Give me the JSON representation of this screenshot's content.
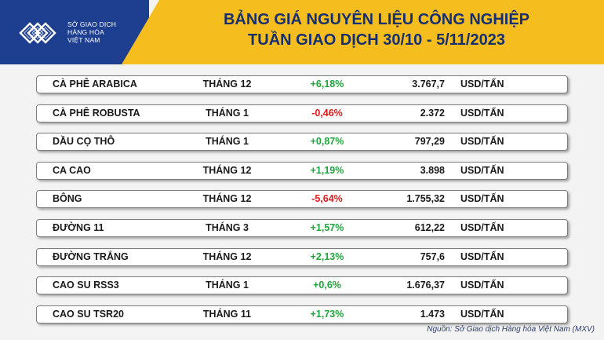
{
  "logo": {
    "line1": "SỞ GIAO DỊCH",
    "line2": "HÀNG HÓA",
    "line3": "VIỆT NAM"
  },
  "title": {
    "line1": "BẢNG GIÁ NGUYÊN LIỆU CÔNG NGHIỆP",
    "line2": "TUẦN GIAO DỊCH 30/10 - 5/11/2023"
  },
  "rows": [
    {
      "name": "CÀ PHÊ ARABICA",
      "month": "THÁNG 12",
      "change": "+6,18%",
      "direction": "up",
      "price": "3.767,7",
      "unit": "USD/TẤN"
    },
    {
      "name": "CÀ PHÊ ROBUSTA",
      "month": "THÁNG 1",
      "change": "-0,46%",
      "direction": "down",
      "price": "2.372",
      "unit": "USD/TẤN"
    },
    {
      "name": "DẦU CỌ THÔ",
      "month": "THÁNG 1",
      "change": "+0,87%",
      "direction": "up",
      "price": "797,29",
      "unit": "USD/TẤN"
    },
    {
      "name": "CA CAO",
      "month": "THÁNG 12",
      "change": "+1,19%",
      "direction": "up",
      "price": "3.898",
      "unit": "USD/TẤN"
    },
    {
      "name": "BÔNG",
      "month": "THÁNG 12",
      "change": "-5,64%",
      "direction": "down",
      "price": "1.755,32",
      "unit": "USD/TẤN"
    },
    {
      "name": "ĐƯỜNG 11",
      "month": "THÁNG 3",
      "change": "+1,57%",
      "direction": "up",
      "price": "612,22",
      "unit": "USD/TẤN"
    },
    {
      "name": "ĐƯỜNG TRẮNG",
      "month": "THÁNG 12",
      "change": "+2,13%",
      "direction": "up",
      "price": "757,6",
      "unit": "USD/TẤN"
    },
    {
      "name": "CAO SU RSS3",
      "month": "THÁNG 1",
      "change": "+0,6%",
      "direction": "up",
      "price": "1.676,37",
      "unit": "USD/TẤN"
    },
    {
      "name": "CAO SU TSR20",
      "month": "THÁNG 11",
      "change": "+1,73%",
      "direction": "up",
      "price": "1.473",
      "unit": "USD/TẤN"
    }
  ],
  "source": "Nguồn: Sở Giao dịch Hàng hóa Việt Nam (MXV)",
  "colors": {
    "header_blue": "#1e3f8f",
    "header_yellow": "#f5bd1d",
    "up": "#1fa53c",
    "down": "#e01b1b"
  }
}
